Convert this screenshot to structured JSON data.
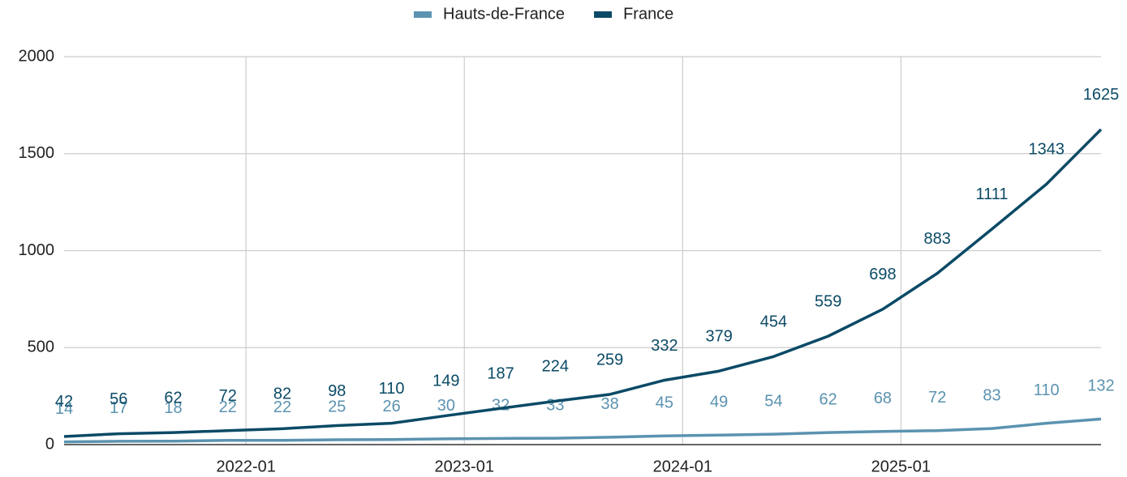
{
  "chart_data": {
    "type": "line",
    "x": [
      "2021-03",
      "2021-06",
      "2021-09",
      "2021-12",
      "2022-03",
      "2022-06",
      "2022-09",
      "2022-12",
      "2023-03",
      "2023-06",
      "2023-09",
      "2023-12",
      "2024-03",
      "2024-06",
      "2024-09",
      "2024-12",
      "2025-03",
      "2025-06",
      "2025-09",
      "2025-12"
    ],
    "series": [
      {
        "name": "Hauts-de-France",
        "color": "#5b93b0",
        "values": [
          14,
          17,
          18,
          22,
          22,
          25,
          26,
          30,
          32,
          33,
          38,
          45,
          49,
          54,
          62,
          68,
          72,
          83,
          110,
          132
        ]
      },
      {
        "name": "France",
        "color": "#0b4a66",
        "values": [
          42,
          56,
          62,
          72,
          82,
          98,
          110,
          149,
          187,
          224,
          259,
          332,
          379,
          454,
          559,
          698,
          883,
          1111,
          1343,
          1625
        ]
      }
    ],
    "xlim": [
      "2021-03",
      "2025-12"
    ],
    "xticks": [
      "2022-01",
      "2023-01",
      "2024-01",
      "2025-01"
    ],
    "ylim": [
      0,
      2000
    ],
    "yticks": [
      0,
      500,
      1000,
      1500,
      2000
    ],
    "grid": true,
    "legend": "top"
  }
}
